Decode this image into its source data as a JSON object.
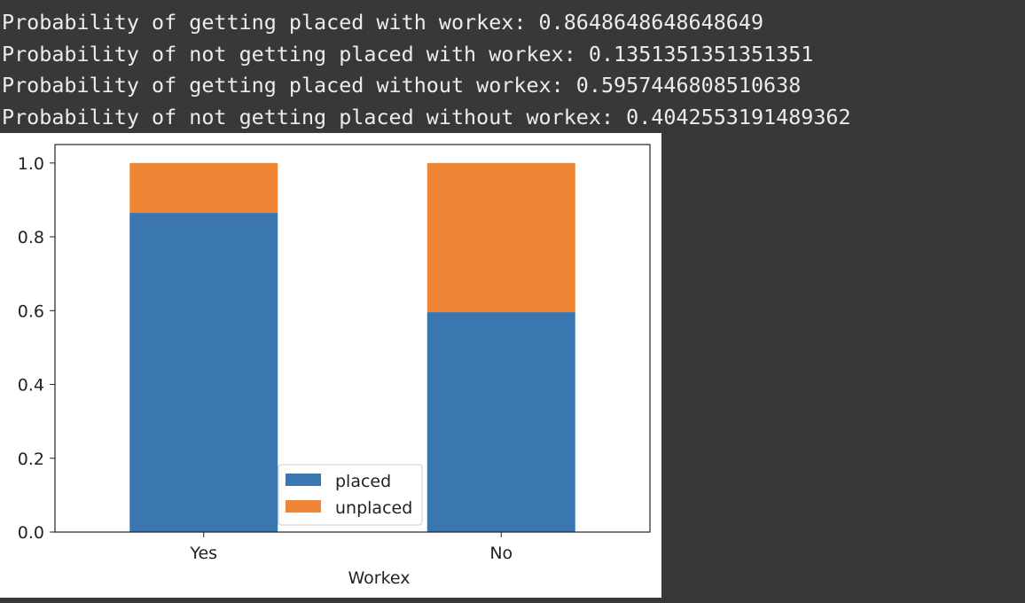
{
  "output": {
    "lines": [
      "Probability of getting placed with workex: 0.8648648648648649",
      "Probability of not getting placed with workex: 0.1351351351351351",
      "Probability of getting placed without workex: 0.5957446808510638",
      "Probability of not getting placed without workex: 0.4042553191489362"
    ]
  },
  "chart_data": {
    "type": "bar",
    "stacked": true,
    "categories": [
      "Yes",
      "No"
    ],
    "series": [
      {
        "name": "placed",
        "values": [
          0.8648648648648649,
          0.5957446808510638
        ],
        "color": "#3a76af"
      },
      {
        "name": "unplaced",
        "values": [
          0.1351351351351351,
          0.4042553191489362
        ],
        "color": "#ef8636"
      }
    ],
    "xlabel": "Workex",
    "ylabel": "",
    "ylim": [
      0,
      1.05
    ],
    "yticks": [
      0.0,
      0.2,
      0.4,
      0.6,
      0.8,
      1.0
    ],
    "ytick_labels": [
      "0.0",
      "0.2",
      "0.4",
      "0.6",
      "0.8",
      "1.0"
    ],
    "grid": false,
    "legend": "lower-center"
  }
}
